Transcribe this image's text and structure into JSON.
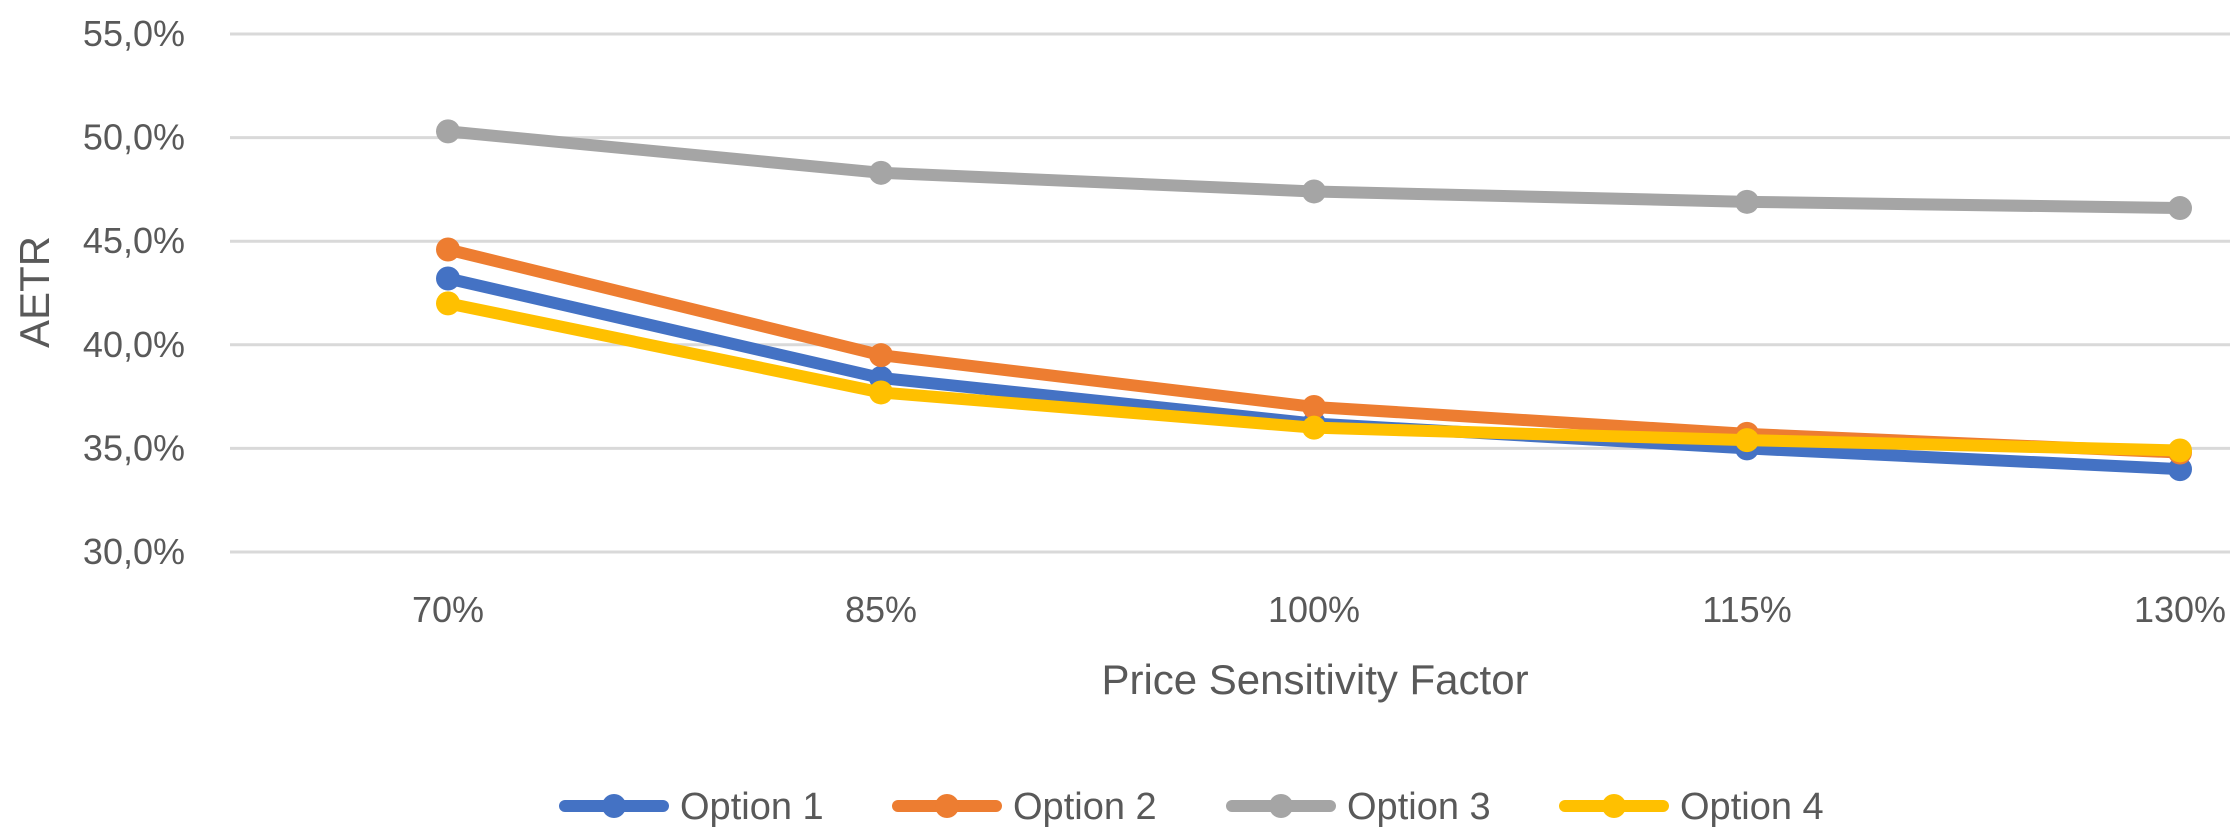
{
  "chart_data": {
    "type": "line",
    "title": "",
    "xlabel": "Price Sensitivity Factor",
    "ylabel": "AETR",
    "categories": [
      "70%",
      "85%",
      "100%",
      "115%",
      "130%"
    ],
    "yticks": [
      "30,0%",
      "35,0%",
      "40,0%",
      "45,0%",
      "50,0%",
      "55,0%"
    ],
    "ylim": [
      30,
      55
    ],
    "grid": true,
    "legend_position": "bottom",
    "series": [
      {
        "name": "Option 1",
        "color": "#4472C4",
        "values": [
          43.2,
          38.4,
          36.2,
          35.0,
          34.0
        ]
      },
      {
        "name": "Option 2",
        "color": "#ED7D31",
        "values": [
          44.6,
          39.5,
          37.0,
          35.7,
          34.8
        ]
      },
      {
        "name": "Option 3",
        "color": "#A5A5A5",
        "values": [
          50.3,
          48.3,
          47.4,
          46.9,
          46.6
        ]
      },
      {
        "name": "Option 4",
        "color": "#FFC000",
        "values": [
          42.0,
          37.7,
          36.0,
          35.4,
          34.9
        ]
      }
    ]
  }
}
